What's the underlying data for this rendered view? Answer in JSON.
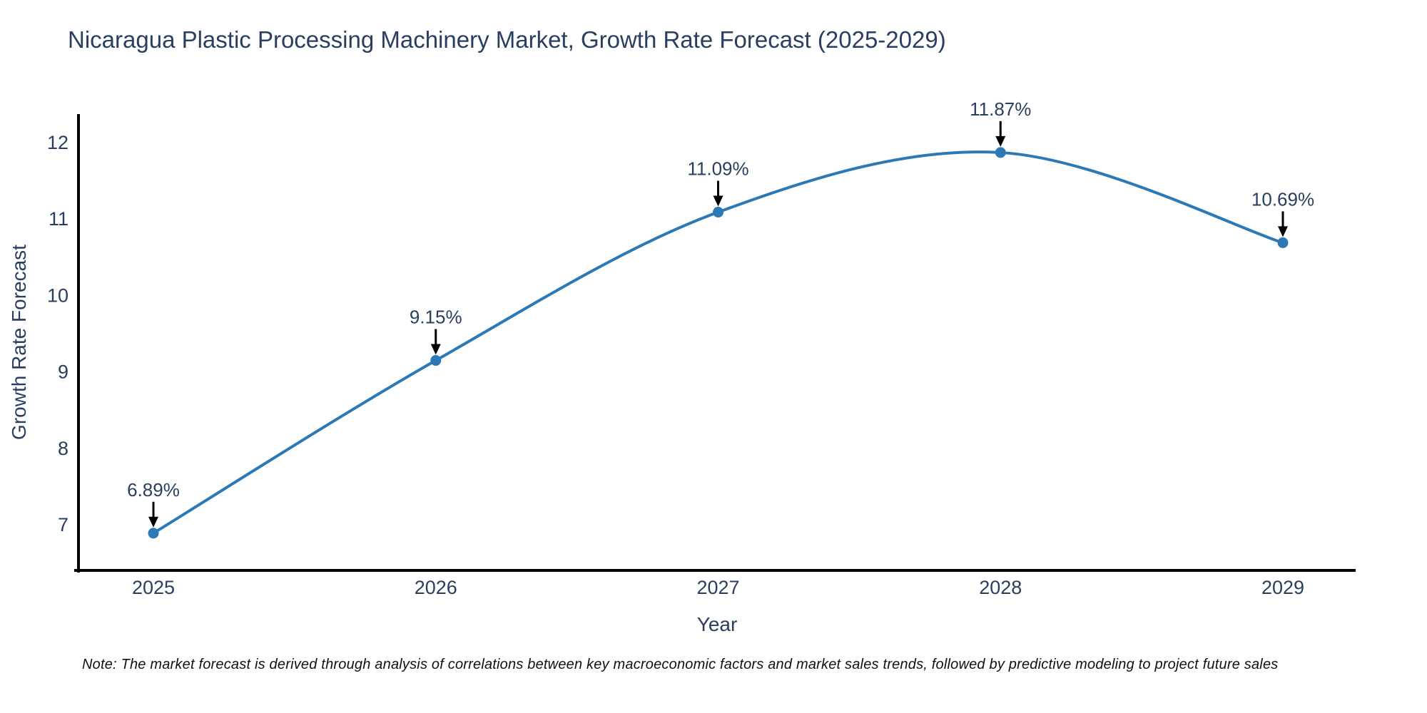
{
  "title": "Nicaragua Plastic Processing Machinery Market, Growth Rate Forecast (2025-2029)",
  "note": "Note: The market forecast is derived through analysis of correlations between key macroeconomic factors and market sales trends, followed by predictive modeling to project future sales",
  "colors": {
    "line": "#2c79b5",
    "marker": "#2c79b5",
    "axis": "#000000",
    "arrow": "#000000",
    "text": "#2a3f5f",
    "background": "#ffffff"
  },
  "chart_data": {
    "type": "line",
    "title": "Nicaragua Plastic Processing Machinery Market, Growth Rate Forecast (2025-2029)",
    "x": [
      2025,
      2026,
      2027,
      2028,
      2029
    ],
    "series": [
      {
        "name": "Growth Rate Forecast",
        "values": [
          6.89,
          9.15,
          11.09,
          11.87,
          10.69
        ]
      }
    ],
    "point_labels": [
      "6.89%",
      "9.15%",
      "11.09%",
      "11.87%",
      "10.69%"
    ],
    "xlabel": "Year",
    "ylabel": "Growth Rate Forecast",
    "xtick_labels": [
      "2025",
      "2026",
      "2027",
      "2028",
      "2029"
    ],
    "yticks": [
      7,
      8,
      9,
      10,
      11,
      12
    ],
    "ylim": [
      6.4,
      12.37
    ],
    "xlim": [
      2024.73,
      2029.26
    ],
    "grid": false,
    "legend": false,
    "line_shape": "spline",
    "annotations_have_arrows": true
  }
}
